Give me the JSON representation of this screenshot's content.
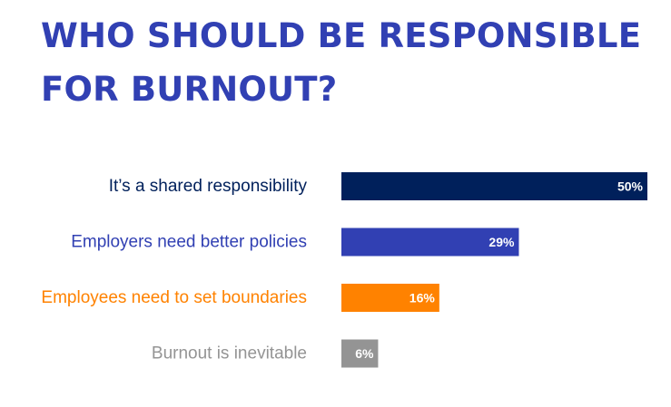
{
  "chart_data": {
    "type": "bar",
    "orientation": "horizontal",
    "title": [
      "WHO SHOULD BE RESPONSIBLE",
      "FOR BURNOUT?"
    ],
    "categories": [
      "It’s a shared responsibility",
      "Employers need better policies",
      "Employees need to set boundaries",
      "Burnout is inevitable"
    ],
    "values": [
      50,
      29,
      16,
      6
    ],
    "value_labels": [
      "50%",
      "29%",
      "16%",
      "6%"
    ],
    "unit": "%",
    "xlim": [
      0,
      50
    ],
    "grid": false,
    "legend": "none",
    "colors": [
      "#00205b",
      "#3140b3",
      "#ff8200",
      "#949494"
    ]
  },
  "colors": {
    "title": "#3140b3",
    "background": "#ffffff"
  }
}
